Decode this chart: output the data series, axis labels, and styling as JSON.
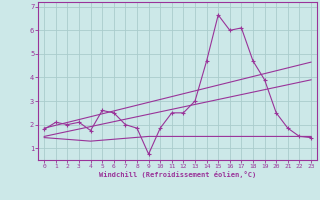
{
  "xlabel": "Windchill (Refroidissement éolien,°C)",
  "background_color": "#cce8e8",
  "grid_color": "#aacccc",
  "line_color": "#993399",
  "xlim": [
    -0.5,
    23.5
  ],
  "ylim": [
    0.5,
    7.2
  ],
  "xticks": [
    0,
    1,
    2,
    3,
    4,
    5,
    6,
    7,
    8,
    9,
    10,
    11,
    12,
    13,
    14,
    15,
    16,
    17,
    18,
    19,
    20,
    21,
    22,
    23
  ],
  "yticks": [
    1,
    2,
    3,
    4,
    5,
    6,
    7
  ],
  "curve1_x": [
    0,
    1,
    2,
    3,
    4,
    5,
    6,
    7,
    8,
    9,
    10,
    11,
    12,
    13,
    14,
    15,
    16,
    17,
    18,
    19,
    20,
    21,
    22,
    23
  ],
  "curve1_y": [
    1.8,
    2.1,
    2.0,
    2.1,
    1.75,
    2.6,
    2.5,
    2.0,
    1.85,
    0.75,
    1.85,
    2.5,
    2.5,
    3.0,
    4.7,
    6.65,
    6.0,
    6.1,
    4.7,
    3.9,
    2.5,
    1.85,
    1.5,
    1.45
  ],
  "curve2_x": [
    0,
    23
  ],
  "curve2_y": [
    1.85,
    4.65
  ],
  "curve3_x": [
    0,
    23
  ],
  "curve3_y": [
    1.5,
    3.9
  ],
  "curve4_x": [
    0,
    4,
    9,
    23
  ],
  "curve4_y": [
    1.45,
    1.3,
    1.5,
    1.5
  ]
}
